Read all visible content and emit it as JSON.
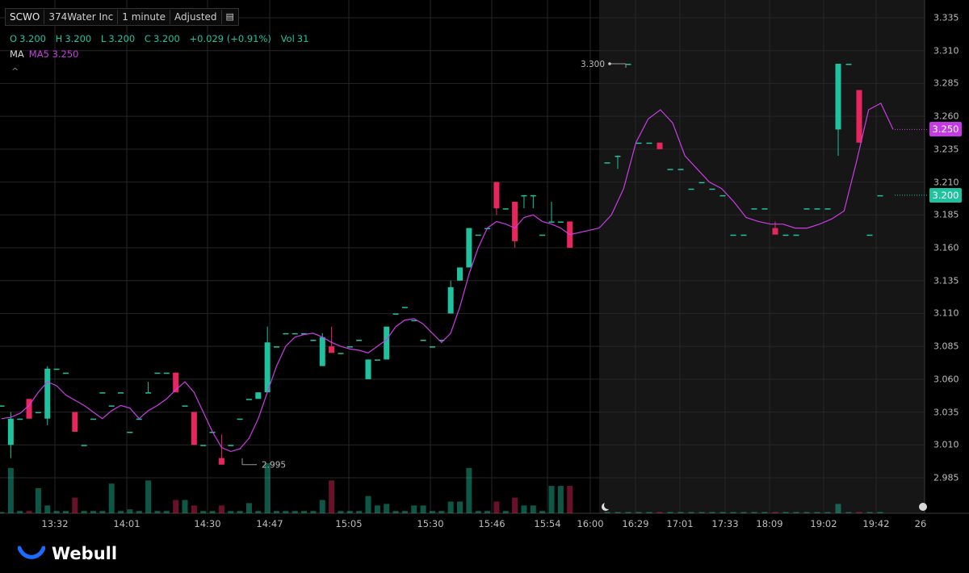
{
  "header": {
    "symbol": "SCWO",
    "name": "374Water Inc",
    "interval": "1 minute",
    "adjusted": "Adjusted"
  },
  "ohlc": {
    "o_label": "O",
    "o": "3.200",
    "h_label": "H",
    "h": "3.200",
    "l_label": "L",
    "l": "3.200",
    "c_label": "C",
    "c": "3.200",
    "change": "+0.029 (+0.91%)",
    "vol_label": "Vol",
    "vol": "31"
  },
  "ma_line": {
    "label": "MA",
    "value": "MA5 3.250"
  },
  "caret": "^",
  "brand": "Webull",
  "colors": {
    "up": "#1fc29e",
    "down": "#e8265e",
    "ma": "#cc3ce6",
    "price_badge": "#1fc29e",
    "ma_badge": "#c63ae6"
  },
  "chart_data": {
    "type": "candlestick",
    "y_ticks": [
      "3.335",
      "3.310",
      "3.285",
      "3.260",
      "3.235",
      "3.210",
      "3.185",
      "3.160",
      "3.135",
      "3.110",
      "3.085",
      "3.060",
      "3.035",
      "3.010",
      "2.985"
    ],
    "ylim": [
      2.985,
      3.335
    ],
    "x_ticks": [
      "13:32",
      "14:01",
      "14:30",
      "14:47",
      "15:05",
      "15:30",
      "15:46",
      "15:54",
      "16:00",
      "16:29",
      "17:01",
      "17:33",
      "18:09",
      "19:02",
      "19:42",
      "26"
    ],
    "extended_hours_from_index": 41,
    "annotations": {
      "high": "3.300",
      "low": "2.995"
    },
    "last_price_badge": "3.200",
    "ma_badge": "3.250",
    "candles": [
      {
        "o": 3.04,
        "h": 3.04,
        "l": 3.04,
        "c": 3.04,
        "v": 1
      },
      {
        "o": 3.01,
        "h": 3.035,
        "l": 3.0,
        "c": 3.03,
        "v": 58
      },
      {
        "o": 3.03,
        "h": 3.03,
        "l": 3.03,
        "c": 3.03,
        "v": 3
      },
      {
        "o": 3.045,
        "h": 3.045,
        "l": 3.03,
        "c": 3.03,
        "v": 3
      },
      {
        "o": 3.035,
        "h": 3.035,
        "l": 3.035,
        "c": 3.035,
        "v": 32
      },
      {
        "o": 3.03,
        "h": 3.07,
        "l": 3.025,
        "c": 3.068,
        "v": 10
      },
      {
        "o": 3.068,
        "h": 3.068,
        "l": 3.068,
        "c": 3.068,
        "v": 3
      },
      {
        "o": 3.065,
        "h": 3.065,
        "l": 3.065,
        "c": 3.065,
        "v": 3
      },
      {
        "o": 3.035,
        "h": 3.035,
        "l": 3.02,
        "c": 3.02,
        "v": 20
      },
      {
        "o": 3.01,
        "h": 3.01,
        "l": 3.01,
        "c": 3.01,
        "v": 3
      },
      {
        "o": 3.03,
        "h": 3.03,
        "l": 3.03,
        "c": 3.03,
        "v": 3
      },
      {
        "o": 3.05,
        "h": 3.05,
        "l": 3.05,
        "c": 3.05,
        "v": 3
      },
      {
        "o": 3.04,
        "h": 3.04,
        "l": 3.04,
        "c": 3.04,
        "v": 38
      },
      {
        "o": 3.05,
        "h": 3.05,
        "l": 3.05,
        "c": 3.05,
        "v": 3
      },
      {
        "o": 3.02,
        "h": 3.02,
        "l": 3.02,
        "c": 3.02,
        "v": 5
      },
      {
        "o": 3.03,
        "h": 3.03,
        "l": 3.03,
        "c": 3.03,
        "v": 3
      },
      {
        "o": 3.05,
        "h": 3.058,
        "l": 3.05,
        "c": 3.05,
        "v": 42
      },
      {
        "o": 3.065,
        "h": 3.065,
        "l": 3.065,
        "c": 3.065,
        "v": 3
      },
      {
        "o": 3.065,
        "h": 3.065,
        "l": 3.065,
        "c": 3.065,
        "v": 3
      },
      {
        "o": 3.065,
        "h": 3.065,
        "l": 3.05,
        "c": 3.05,
        "v": 17
      },
      {
        "o": 3.04,
        "h": 3.04,
        "l": 3.04,
        "c": 3.04,
        "v": 17
      },
      {
        "o": 3.035,
        "h": 3.035,
        "l": 3.01,
        "c": 3.01,
        "v": 10
      },
      {
        "o": 3.01,
        "h": 3.01,
        "l": 3.01,
        "c": 3.01,
        "v": 3
      },
      {
        "o": 3.02,
        "h": 3.02,
        "l": 3.02,
        "c": 3.02,
        "v": 3
      },
      {
        "o": 3.0,
        "h": 3.018,
        "l": 2.995,
        "c": 2.995,
        "v": 10
      },
      {
        "o": 3.01,
        "h": 3.01,
        "l": 3.01,
        "c": 3.01,
        "v": 3
      },
      {
        "o": 3.03,
        "h": 3.03,
        "l": 3.03,
        "c": 3.03,
        "v": 3
      },
      {
        "o": 3.045,
        "h": 3.045,
        "l": 3.045,
        "c": 3.045,
        "v": 13
      },
      {
        "o": 3.045,
        "h": 3.05,
        "l": 3.045,
        "c": 3.05,
        "v": 3
      },
      {
        "o": 3.05,
        "h": 3.1,
        "l": 3.05,
        "c": 3.088,
        "v": 64
      },
      {
        "o": 3.085,
        "h": 3.085,
        "l": 3.085,
        "c": 3.085,
        "v": 3
      },
      {
        "o": 3.095,
        "h": 3.095,
        "l": 3.095,
        "c": 3.095,
        "v": 3
      },
      {
        "o": 3.095,
        "h": 3.095,
        "l": 3.095,
        "c": 3.095,
        "v": 3
      },
      {
        "o": 3.095,
        "h": 3.095,
        "l": 3.095,
        "c": 3.095,
        "v": 3
      },
      {
        "o": 3.09,
        "h": 3.09,
        "l": 3.09,
        "c": 3.09,
        "v": 3
      },
      {
        "o": 3.07,
        "h": 3.095,
        "l": 3.07,
        "c": 3.092,
        "v": 17
      },
      {
        "o": 3.085,
        "h": 3.1,
        "l": 3.08,
        "c": 3.08,
        "v": 42
      },
      {
        "o": 3.08,
        "h": 3.08,
        "l": 3.08,
        "c": 3.08,
        "v": 3
      },
      {
        "o": 3.085,
        "h": 3.085,
        "l": 3.085,
        "c": 3.085,
        "v": 3
      },
      {
        "o": 3.09,
        "h": 3.09,
        "l": 3.09,
        "c": 3.09,
        "v": 3
      },
      {
        "o": 3.06,
        "h": 3.075,
        "l": 3.06,
        "c": 3.075,
        "v": 22
      },
      {
        "o": 3.075,
        "h": 3.075,
        "l": 3.075,
        "c": 3.075,
        "v": 10
      },
      {
        "o": 3.075,
        "h": 3.1,
        "l": 3.075,
        "c": 3.1,
        "v": 12
      },
      {
        "o": 3.11,
        "h": 3.11,
        "l": 3.11,
        "c": 3.11,
        "v": 3
      },
      {
        "o": 3.115,
        "h": 3.115,
        "l": 3.115,
        "c": 3.115,
        "v": 3
      },
      {
        "o": 3.105,
        "h": 3.105,
        "l": 3.105,
        "c": 3.105,
        "v": 10
      },
      {
        "o": 3.09,
        "h": 3.09,
        "l": 3.09,
        "c": 3.09,
        "v": 10
      },
      {
        "o": 3.085,
        "h": 3.085,
        "l": 3.085,
        "c": 3.085,
        "v": 3
      },
      {
        "o": 3.09,
        "h": 3.09,
        "l": 3.09,
        "c": 3.09,
        "v": 3
      },
      {
        "o": 3.11,
        "h": 3.135,
        "l": 3.11,
        "c": 3.13,
        "v": 15
      },
      {
        "o": 3.135,
        "h": 3.145,
        "l": 3.135,
        "c": 3.145,
        "v": 15
      },
      {
        "o": 3.145,
        "h": 3.175,
        "l": 3.145,
        "c": 3.175,
        "v": 58
      },
      {
        "o": 3.17,
        "h": 3.17,
        "l": 3.17,
        "c": 3.17,
        "v": 3
      },
      {
        "o": 3.175,
        "h": 3.175,
        "l": 3.175,
        "c": 3.175,
        "v": 3
      },
      {
        "o": 3.21,
        "h": 3.21,
        "l": 3.185,
        "c": 3.19,
        "v": 15
      },
      {
        "o": 3.19,
        "h": 3.19,
        "l": 3.19,
        "c": 3.19,
        "v": 3
      },
      {
        "o": 3.195,
        "h": 3.195,
        "l": 3.16,
        "c": 3.165,
        "v": 20
      },
      {
        "o": 3.2,
        "h": 3.2,
        "l": 3.19,
        "c": 3.2,
        "v": 10
      },
      {
        "o": 3.2,
        "h": 3.2,
        "l": 3.19,
        "c": 3.2,
        "v": 10
      },
      {
        "o": 3.17,
        "h": 3.17,
        "l": 3.17,
        "c": 3.17,
        "v": 3
      },
      {
        "o": 3.18,
        "h": 3.195,
        "l": 3.18,
        "c": 3.18,
        "v": 35
      },
      {
        "o": 3.18,
        "h": 3.18,
        "l": 3.18,
        "c": 3.18,
        "v": 35
      },
      {
        "o": 3.18,
        "h": 3.18,
        "l": 3.16,
        "c": 3.16,
        "v": 35
      }
    ],
    "ext_candles": [
      {
        "o": 3.225,
        "h": 3.225,
        "l": 3.225,
        "c": 3.225,
        "v": 1
      },
      {
        "o": 3.23,
        "h": 3.23,
        "l": 3.22,
        "c": 3.23,
        "v": 1
      },
      {
        "o": 3.3,
        "h": 3.3,
        "l": 3.3,
        "c": 3.3,
        "v": 1
      },
      {
        "o": 3.24,
        "h": 3.24,
        "l": 3.24,
        "c": 3.24,
        "v": 1
      },
      {
        "o": 3.24,
        "h": 3.24,
        "l": 3.24,
        "c": 3.24,
        "v": 1
      },
      {
        "o": 3.24,
        "h": 3.24,
        "l": 3.235,
        "c": 3.235,
        "v": 1
      },
      {
        "o": 3.22,
        "h": 3.22,
        "l": 3.22,
        "c": 3.22,
        "v": 1
      },
      {
        "o": 3.22,
        "h": 3.22,
        "l": 3.22,
        "c": 3.22,
        "v": 1
      },
      {
        "o": 3.205,
        "h": 3.205,
        "l": 3.205,
        "c": 3.205,
        "v": 1
      },
      {
        "o": 3.21,
        "h": 3.21,
        "l": 3.21,
        "c": 3.21,
        "v": 1
      },
      {
        "o": 3.205,
        "h": 3.205,
        "l": 3.205,
        "c": 3.205,
        "v": 1
      },
      {
        "o": 3.2,
        "h": 3.2,
        "l": 3.2,
        "c": 3.2,
        "v": 1
      },
      {
        "o": 3.17,
        "h": 3.17,
        "l": 3.17,
        "c": 3.17,
        "v": 1
      },
      {
        "o": 3.17,
        "h": 3.17,
        "l": 3.17,
        "c": 3.17,
        "v": 1
      },
      {
        "o": 3.19,
        "h": 3.19,
        "l": 3.19,
        "c": 3.19,
        "v": 1
      },
      {
        "o": 3.19,
        "h": 3.19,
        "l": 3.19,
        "c": 3.19,
        "v": 1
      },
      {
        "o": 3.175,
        "h": 3.18,
        "l": 3.17,
        "c": 3.17,
        "v": 1
      },
      {
        "o": 3.17,
        "h": 3.17,
        "l": 3.17,
        "c": 3.17,
        "v": 1
      },
      {
        "o": 3.17,
        "h": 3.17,
        "l": 3.17,
        "c": 3.17,
        "v": 1
      },
      {
        "o": 3.19,
        "h": 3.19,
        "l": 3.19,
        "c": 3.19,
        "v": 1
      },
      {
        "o": 3.19,
        "h": 3.19,
        "l": 3.19,
        "c": 3.19,
        "v": 1
      },
      {
        "o": 3.19,
        "h": 3.19,
        "l": 3.19,
        "c": 3.19,
        "v": 1
      },
      {
        "o": 3.25,
        "h": 3.3,
        "l": 3.23,
        "c": 3.3,
        "v": 12
      },
      {
        "o": 3.3,
        "h": 3.3,
        "l": 3.3,
        "c": 3.3,
        "v": 1
      },
      {
        "o": 3.28,
        "h": 3.28,
        "l": 3.24,
        "c": 3.24,
        "v": 1
      },
      {
        "o": 3.17,
        "h": 3.17,
        "l": 3.17,
        "c": 3.17,
        "v": 1
      },
      {
        "o": 3.2,
        "h": 3.2,
        "l": 3.2,
        "c": 3.2,
        "v": 1
      }
    ],
    "ma5": [
      3.03,
      3.031,
      3.034,
      3.04,
      3.05,
      3.058,
      3.055,
      3.048,
      3.044,
      3.04,
      3.035,
      3.03,
      3.036,
      3.04,
      3.038,
      3.03,
      3.036,
      3.04,
      3.045,
      3.052,
      3.058,
      3.05,
      3.035,
      3.02,
      3.008,
      3.005,
      3.007,
      3.015,
      3.03,
      3.05,
      3.07,
      3.085,
      3.092,
      3.094,
      3.095,
      3.092,
      3.088,
      3.085,
      3.083,
      3.082,
      3.08,
      3.085,
      3.09,
      3.1,
      3.105,
      3.106,
      3.102,
      3.095,
      3.088,
      3.095,
      3.115,
      3.14,
      3.16,
      3.175,
      3.18,
      3.178,
      3.175,
      3.183,
      3.185,
      3.18,
      3.178,
      3.175,
      3.17,
      3.175,
      3.185,
      3.205,
      3.24,
      3.258,
      3.265,
      3.255,
      3.23,
      3.22,
      3.21,
      3.205,
      3.195,
      3.183,
      3.18,
      3.178,
      3.178,
      3.175,
      3.175,
      3.178,
      3.182,
      3.188,
      3.225,
      3.265,
      3.27,
      3.25
    ],
    "ma5_ext_from": 63
  }
}
